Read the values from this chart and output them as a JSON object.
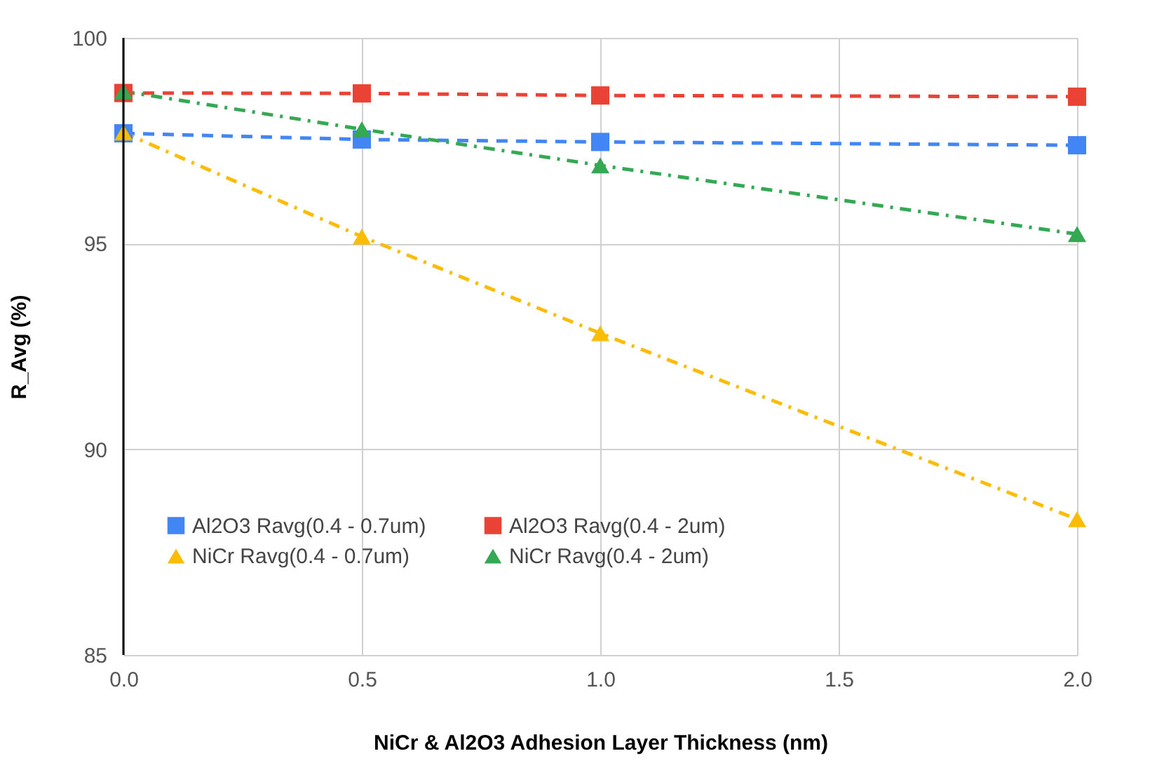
{
  "chart_data": {
    "type": "line",
    "xlabel": "NiCr & Al2O3 Adhesion Layer Thickness (nm)",
    "ylabel": "R_Avg (%)",
    "x": [
      0,
      0.5,
      1.0,
      2.0
    ],
    "xlim": [
      0,
      2.0
    ],
    "xticks": [
      {
        "value": 0,
        "label": "0.0"
      },
      {
        "value": 0.5,
        "label": "0.5"
      },
      {
        "value": 1,
        "label": "1.0"
      },
      {
        "value": 1.5,
        "label": "1.5"
      },
      {
        "value": 2,
        "label": "2.0"
      }
    ],
    "ylim": [
      85,
      100
    ],
    "yticks": [
      85,
      90,
      95,
      100
    ],
    "grid": true,
    "legend": "bottom",
    "series": [
      {
        "name": "Al2O3 Ravg(0.4 - 0.7um)",
        "color": "#4285f4",
        "marker": "square",
        "line_style": "dashed",
        "values": [
          97.68,
          97.53,
          97.47,
          97.39
        ]
      },
      {
        "name": "Al2O3 Ravg(0.4 - 2um)",
        "color": "#ea4335",
        "marker": "square",
        "line_style": "dashed",
        "values": [
          98.66,
          98.65,
          98.6,
          98.57
        ]
      },
      {
        "name": "NiCr Ravg(0.4 - 0.7um)",
        "color": "#fbbc04",
        "marker": "triangle",
        "line_style": "dashdot",
        "values": [
          97.7,
          95.17,
          92.82,
          88.3
        ]
      },
      {
        "name": "NiCr Ravg(0.4 - 2um)",
        "color": "#34a853",
        "marker": "triangle",
        "line_style": "dashdot",
        "values": [
          98.7,
          97.78,
          96.9,
          95.23
        ]
      }
    ]
  }
}
